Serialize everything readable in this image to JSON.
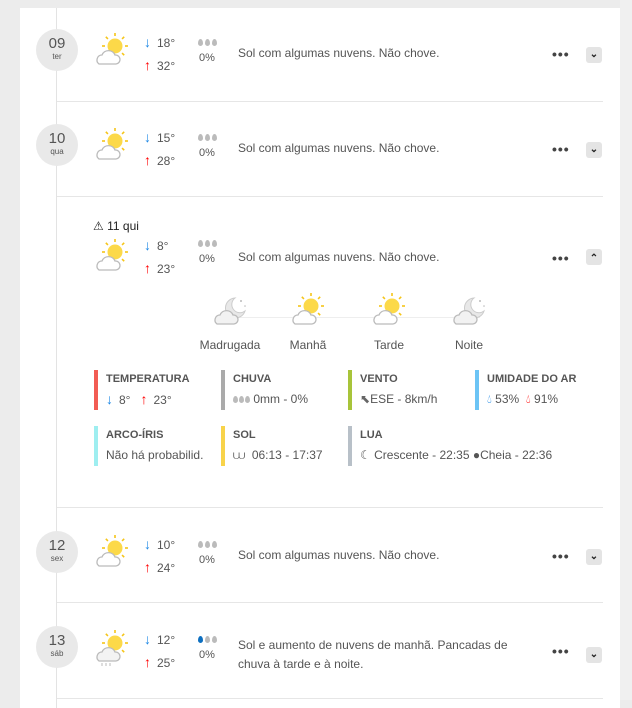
{
  "days": [
    {
      "num": "09",
      "weekday": "ter",
      "min": "18°",
      "max": "32°",
      "rain": "0%",
      "desc": "Sol com algumas nuvens. Não chove.",
      "icon": "sun-cloud",
      "drops": "gray"
    },
    {
      "num": "10",
      "weekday": "qua",
      "min": "15°",
      "max": "28°",
      "rain": "0%",
      "desc": "Sol com algumas nuvens. Não chove.",
      "icon": "sun-cloud",
      "drops": "gray"
    },
    {
      "label": "11 qui",
      "min": "8°",
      "max": "23°",
      "rain": "0%",
      "desc": "Sol com algumas nuvens. Não chove.",
      "icon": "sun-cloud",
      "drops": "gray",
      "expanded": true
    },
    {
      "num": "12",
      "weekday": "sex",
      "min": "10°",
      "max": "24°",
      "rain": "0%",
      "desc": "Sol com algumas nuvens. Não chove.",
      "icon": "sun-cloud",
      "drops": "gray"
    },
    {
      "num": "13",
      "weekday": "sáb",
      "min": "12°",
      "max": "25°",
      "rain": "0%",
      "desc": "Sol e aumento de nuvens de manhã. Pancadas de chuva à tarde e à noite.",
      "icon": "sun-cloud-rain",
      "drops": "one-blue"
    }
  ],
  "arrows": {
    "down": "↓",
    "up": "↑"
  },
  "menu_dots": "•••",
  "chevron_down": "⌄",
  "chevron_up": "⌃",
  "periods": [
    {
      "label": "Madrugada",
      "icon": "moon-cloud"
    },
    {
      "label": "Manhã",
      "icon": "sun-cloud"
    },
    {
      "label": "Tarde",
      "icon": "sun-cloud"
    },
    {
      "label": "Noite",
      "icon": "moon-cloud"
    }
  ],
  "details": {
    "temperatura": {
      "title": "TEMPERATURA",
      "min": "8°",
      "max": "23°",
      "color": "#f25c54"
    },
    "chuva": {
      "title": "CHUVA",
      "value": "0mm - 0%",
      "color": "#aaaaaa"
    },
    "vento": {
      "title": "VENTO",
      "value": "ESE - 8km/h",
      "color": "#a8c43a"
    },
    "umidade": {
      "title": "UMIDADE DO AR",
      "min": "53%",
      "max": "91%",
      "color": "#6cc4f5"
    },
    "arcoiris": {
      "title": "ARCO-ÍRIS",
      "value": "Não há probabilid.",
      "color": "#9eeef0"
    },
    "sol": {
      "title": "SOL",
      "value": "06:13 - 17:37",
      "color": "#f8d34a"
    },
    "lua": {
      "title": "LUA",
      "phase1": "Crescente - 22:35",
      "phase2": "Cheia - 22:36",
      "color": "#b8c0c8"
    }
  }
}
